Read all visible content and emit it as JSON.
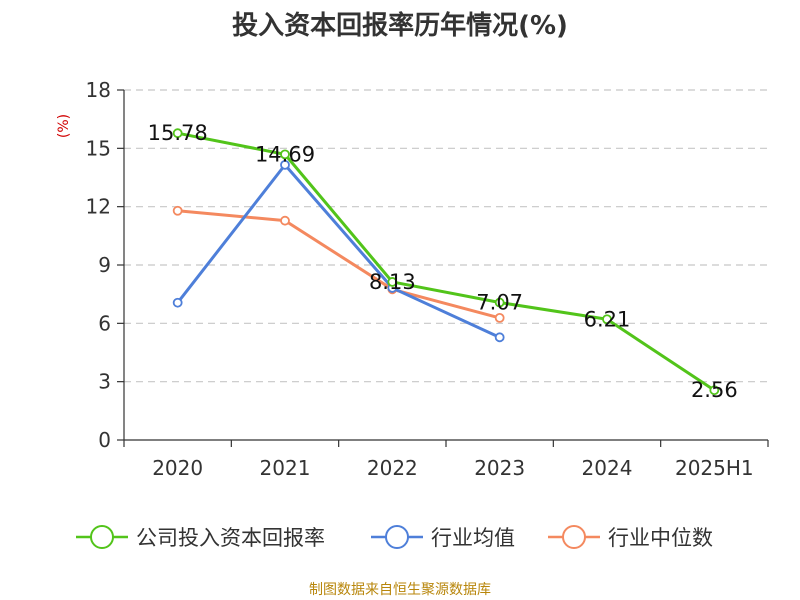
{
  "chart_data": {
    "type": "line",
    "title": "投入资本回报率历年情况(%)",
    "ylabel": "(%)",
    "categories": [
      "2020",
      "2021",
      "2022",
      "2023",
      "2024",
      "2025H1"
    ],
    "ylim": [
      0,
      18
    ],
    "yticks": [
      0,
      3,
      6,
      9,
      12,
      15,
      18
    ],
    "grid": true,
    "legend_position": "bottom",
    "series": [
      {
        "name": "公司投入资本回报率",
        "color": "#52c41a",
        "values": [
          15.78,
          14.69,
          8.13,
          7.07,
          6.21,
          2.56
        ],
        "labels": [
          "15.78",
          "14.69",
          "8.13",
          "7.07",
          "6.21",
          "2.56"
        ]
      },
      {
        "name": "行业均值",
        "color": "#4e7fd9",
        "values": [
          7.06,
          14.15,
          7.82,
          5.28,
          null,
          null
        ]
      },
      {
        "name": "行业中位数",
        "color": "#f4895f",
        "values": [
          11.79,
          11.28,
          7.75,
          6.28,
          null,
          null
        ]
      }
    ]
  },
  "source": "制图数据来自恒生聚源数据库"
}
